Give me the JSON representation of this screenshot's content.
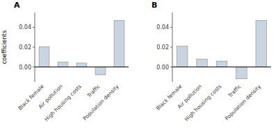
{
  "chart_data": [
    {
      "type": "bar",
      "title": "A",
      "y_label": "coefficients",
      "categories": [
        "Black female",
        "Air pollution",
        "High housing costs",
        "Traffic",
        "Population density"
      ],
      "values": [
        0.0205,
        0.005,
        0.004,
        -0.008,
        0.047
      ],
      "color": "#c8d4df",
      "ylim": [
        -0.015,
        0.055
      ],
      "yticks": [
        {
          "value": 0.0,
          "label": "0.00"
        },
        {
          "value": 0.02,
          "label": "0.02"
        },
        {
          "value": 0.04,
          "label": "0.04"
        }
      ],
      "grid": false
    },
    {
      "type": "bar",
      "title": "B",
      "categories": [
        "Black female",
        "Air pollution",
        "High housing costs",
        "Traffic",
        "Population density"
      ],
      "values": [
        0.021,
        0.008,
        0.006,
        -0.012,
        0.047
      ],
      "color": "#c8d4df",
      "ylim": [
        -0.015,
        0.055
      ],
      "yticks": [
        {
          "value": 0.0,
          "label": "0.00"
        },
        {
          "value": 0.02,
          "label": "0.02"
        },
        {
          "value": 0.04,
          "label": "0.04"
        }
      ],
      "grid": false
    }
  ]
}
